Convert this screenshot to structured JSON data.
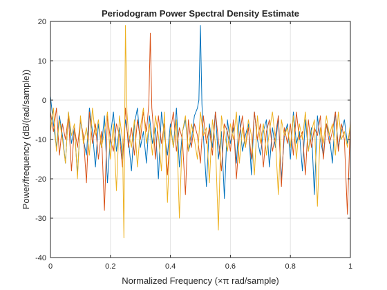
{
  "chart_data": {
    "type": "line",
    "title": "Periodogram Power Spectral Density Estimate",
    "xlabel": "Normalized  Frequency    (×π  rad/sample)",
    "ylabel": "Power/frequency (dB/(rad/sample))",
    "xlim": [
      0,
      1
    ],
    "ylim": [
      -40,
      20
    ],
    "xticks": [
      0,
      0.2,
      0.4,
      0.6,
      0.8,
      1
    ],
    "xtick_labels": [
      "0",
      "0.2",
      "0.4",
      "0.6",
      "0.8",
      "1"
    ],
    "yticks": [
      -40,
      -30,
      -20,
      -10,
      0,
      10,
      20
    ],
    "ytick_labels": [
      "-40",
      "-30",
      "-20",
      "-10",
      "0",
      "10",
      "20"
    ],
    "grid": true,
    "legend": "none",
    "series": [
      {
        "color": "#0072BD",
        "peaks": [
          {
            "x": 0.5,
            "y": 19
          }
        ],
        "x": [
          0,
          0.01,
          0.02,
          0.03,
          0.04,
          0.05,
          0.06,
          0.07,
          0.08,
          0.09,
          0.1,
          0.11,
          0.12,
          0.13,
          0.14,
          0.15,
          0.16,
          0.17,
          0.18,
          0.19,
          0.2,
          0.21,
          0.22,
          0.23,
          0.24,
          0.25,
          0.26,
          0.27,
          0.28,
          0.29,
          0.3,
          0.31,
          0.32,
          0.33,
          0.34,
          0.35,
          0.36,
          0.37,
          0.38,
          0.39,
          0.4,
          0.41,
          0.42,
          0.43,
          0.44,
          0.45,
          0.46,
          0.47,
          0.48,
          0.49,
          0.495,
          0.5,
          0.505,
          0.51,
          0.52,
          0.53,
          0.54,
          0.55,
          0.56,
          0.57,
          0.58,
          0.59,
          0.6,
          0.61,
          0.62,
          0.63,
          0.64,
          0.65,
          0.66,
          0.67,
          0.68,
          0.69,
          0.7,
          0.71,
          0.72,
          0.73,
          0.74,
          0.75,
          0.76,
          0.77,
          0.78,
          0.79,
          0.8,
          0.81,
          0.82,
          0.83,
          0.84,
          0.85,
          0.86,
          0.87,
          0.88,
          0.89,
          0.9,
          0.91,
          0.92,
          0.93,
          0.94,
          0.95,
          0.96,
          0.97,
          0.98,
          0.99,
          1
        ],
        "y": [
          1,
          -6,
          -12,
          -4,
          -9,
          -16,
          -3,
          -11,
          -7,
          -19,
          -5,
          -10,
          -14,
          -2,
          -8,
          -17,
          -6,
          -12,
          -4,
          -21,
          -9,
          -3,
          -13,
          -7,
          -15,
          -5,
          -10,
          -18,
          -6,
          -2,
          -12,
          -8,
          -16,
          -4,
          -11,
          -7,
          -20,
          -3,
          -9,
          -14,
          -6,
          -12,
          -2,
          -17,
          -8,
          -5,
          -13,
          -10,
          -4,
          -2,
          0,
          19,
          -1,
          -9,
          -22,
          -6,
          -12,
          -3,
          -15,
          -8,
          -25,
          -5,
          -11,
          -7,
          -16,
          -4,
          -13,
          -9,
          -6,
          -19,
          -3,
          -10,
          -14,
          -8,
          -5,
          -17,
          -7,
          -12,
          -4,
          -20,
          -9,
          -6,
          -15,
          -3,
          -11,
          -8,
          -18,
          -5,
          -13,
          -7,
          -24,
          -4,
          -10,
          -14,
          -6,
          -9,
          -16,
          -3,
          -12,
          -8,
          -5,
          -11,
          -7
        ]
      },
      {
        "color": "#D95319",
        "peaks": [
          {
            "x": 0.333,
            "y": 17
          }
        ],
        "x": [
          0,
          0.01,
          0.02,
          0.03,
          0.04,
          0.05,
          0.06,
          0.07,
          0.08,
          0.09,
          0.1,
          0.11,
          0.12,
          0.13,
          0.14,
          0.15,
          0.16,
          0.17,
          0.18,
          0.19,
          0.2,
          0.21,
          0.22,
          0.23,
          0.24,
          0.25,
          0.26,
          0.27,
          0.28,
          0.29,
          0.3,
          0.31,
          0.32,
          0.328,
          0.333,
          0.338,
          0.345,
          0.35,
          0.36,
          0.37,
          0.38,
          0.39,
          0.4,
          0.41,
          0.42,
          0.43,
          0.44,
          0.45,
          0.46,
          0.47,
          0.48,
          0.49,
          0.5,
          0.51,
          0.52,
          0.53,
          0.54,
          0.55,
          0.56,
          0.57,
          0.58,
          0.59,
          0.6,
          0.61,
          0.62,
          0.63,
          0.64,
          0.65,
          0.66,
          0.67,
          0.68,
          0.69,
          0.7,
          0.71,
          0.72,
          0.73,
          0.74,
          0.75,
          0.76,
          0.77,
          0.78,
          0.79,
          0.8,
          0.81,
          0.82,
          0.83,
          0.84,
          0.85,
          0.86,
          0.87,
          0.88,
          0.89,
          0.9,
          0.91,
          0.92,
          0.93,
          0.94,
          0.95,
          0.96,
          0.97,
          0.98,
          0.99,
          1
        ],
        "y": [
          -3,
          -8,
          -2,
          -14,
          -6,
          -10,
          -4,
          -18,
          -7,
          -12,
          -5,
          -9,
          -21,
          -3,
          -11,
          -6,
          -15,
          -8,
          -28,
          -4,
          -10,
          -13,
          -6,
          -9,
          -17,
          -2,
          -12,
          -7,
          -14,
          -5,
          -10,
          -3,
          -8,
          -1,
          17,
          -2,
          -9,
          -15,
          -4,
          -11,
          -6,
          -19,
          -8,
          -3,
          -13,
          -7,
          -10,
          -24,
          -5,
          -12,
          -6,
          -9,
          -16,
          -4,
          -11,
          -7,
          -14,
          -3,
          -10,
          -18,
          -6,
          -8,
          -13,
          -5,
          -20,
          -9,
          -4,
          -12,
          -7,
          -15,
          -3,
          -10,
          -6,
          -17,
          -8,
          -5,
          -13,
          -9,
          -4,
          -22,
          -7,
          -11,
          -6,
          -14,
          -3,
          -10,
          -8,
          -19,
          -5,
          -12,
          -7,
          -9,
          -4,
          -15,
          -6,
          -11,
          -8,
          -3,
          -13,
          -6,
          -10,
          -29,
          -5
        ]
      },
      {
        "color": "#EDB120",
        "peaks": [
          {
            "x": 0.25,
            "y": 19
          }
        ],
        "x": [
          0,
          0.01,
          0.02,
          0.03,
          0.04,
          0.05,
          0.06,
          0.07,
          0.08,
          0.09,
          0.1,
          0.11,
          0.12,
          0.13,
          0.14,
          0.15,
          0.16,
          0.17,
          0.18,
          0.19,
          0.2,
          0.21,
          0.22,
          0.23,
          0.24,
          0.245,
          0.25,
          0.255,
          0.26,
          0.27,
          0.28,
          0.29,
          0.3,
          0.31,
          0.32,
          0.33,
          0.34,
          0.35,
          0.36,
          0.37,
          0.38,
          0.39,
          0.4,
          0.41,
          0.42,
          0.43,
          0.44,
          0.45,
          0.46,
          0.47,
          0.48,
          0.49,
          0.5,
          0.51,
          0.52,
          0.53,
          0.54,
          0.55,
          0.56,
          0.57,
          0.58,
          0.59,
          0.6,
          0.61,
          0.62,
          0.63,
          0.64,
          0.65,
          0.66,
          0.67,
          0.68,
          0.69,
          0.7,
          0.71,
          0.72,
          0.73,
          0.74,
          0.75,
          0.76,
          0.77,
          0.78,
          0.79,
          0.8,
          0.81,
          0.82,
          0.83,
          0.84,
          0.85,
          0.86,
          0.87,
          0.88,
          0.89,
          0.9,
          0.91,
          0.92,
          0.93,
          0.94,
          0.95,
          0.96,
          0.97,
          0.98,
          0.99,
          1
        ],
        "y": [
          -8,
          -2,
          -13,
          -5,
          -10,
          -16,
          -3,
          -9,
          -6,
          -20,
          -4,
          -11,
          -7,
          -14,
          -2,
          -9,
          -5,
          -12,
          -8,
          -3,
          -15,
          -6,
          -23,
          -4,
          -10,
          -35,
          19,
          -3,
          -8,
          -12,
          -5,
          -17,
          -7,
          -2,
          -11,
          -6,
          -14,
          -4,
          -9,
          -18,
          -3,
          -26,
          -7,
          -12,
          -5,
          -30,
          -8,
          -4,
          -13,
          -6,
          -10,
          -15,
          -3,
          -9,
          -7,
          -21,
          -5,
          -11,
          -33,
          -4,
          -8,
          -13,
          -6,
          -10,
          -3,
          -16,
          -7,
          -12,
          -5,
          -9,
          -19,
          -4,
          -11,
          -6,
          -14,
          -8,
          -3,
          -10,
          -24,
          -5,
          -9,
          -7,
          -12,
          -4,
          -15,
          -6,
          -10,
          -3,
          -13,
          -8,
          -5,
          -27,
          -7,
          -11,
          -4,
          -9,
          -6,
          -14,
          -3,
          -10,
          -8,
          -12,
          -6
        ]
      }
    ]
  }
}
